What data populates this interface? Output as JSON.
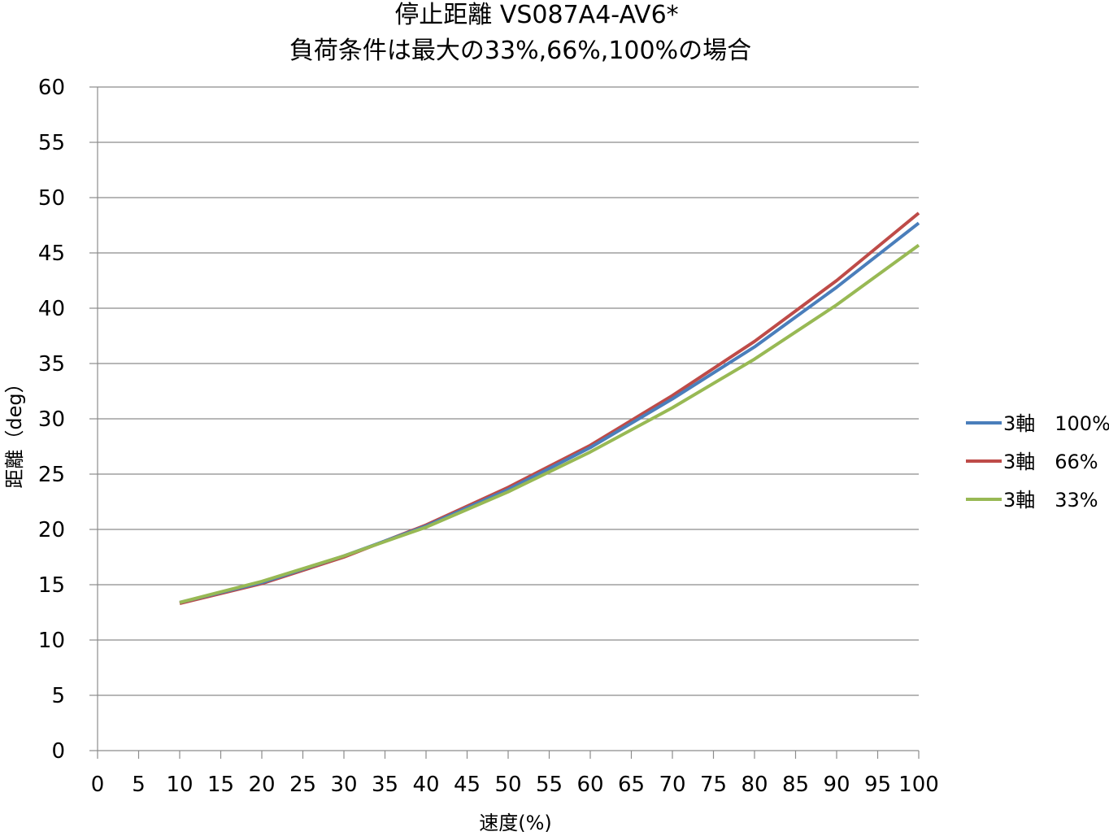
{
  "chart_data": {
    "type": "line",
    "title": "停止距離 VS087A4-AV6*",
    "subtitle": "負荷条件は最大の33%,66%,100%の場合",
    "xlabel": "速度(%)",
    "ylabel": "距離（deg）",
    "xlim": [
      0,
      100
    ],
    "ylim": [
      0,
      60
    ],
    "xticks": [
      0,
      5,
      10,
      15,
      20,
      25,
      30,
      35,
      40,
      45,
      50,
      55,
      60,
      65,
      70,
      75,
      80,
      85,
      90,
      95,
      100
    ],
    "yticks": [
      0,
      5,
      10,
      15,
      20,
      25,
      30,
      35,
      40,
      45,
      50,
      55,
      60
    ],
    "grid": "horizontal",
    "legend_position": "right",
    "x": [
      10,
      20,
      30,
      40,
      50,
      60,
      70,
      80,
      90,
      100
    ],
    "series": [
      {
        "name": "3軸　100%",
        "color": "#4a7ebb",
        "values": [
          13.4,
          15.2,
          17.6,
          20.3,
          23.6,
          27.4,
          31.8,
          36.5,
          41.9,
          47.7
        ]
      },
      {
        "name": "3軸　66%",
        "color": "#be4b48",
        "values": [
          13.3,
          15.1,
          17.5,
          20.4,
          23.8,
          27.6,
          32.1,
          37.0,
          42.5,
          48.6
        ]
      },
      {
        "name": "3軸　33%",
        "color": "#98b954",
        "values": [
          13.4,
          15.3,
          17.6,
          20.2,
          23.4,
          27.0,
          31.0,
          35.4,
          40.3,
          45.7
        ]
      }
    ]
  }
}
